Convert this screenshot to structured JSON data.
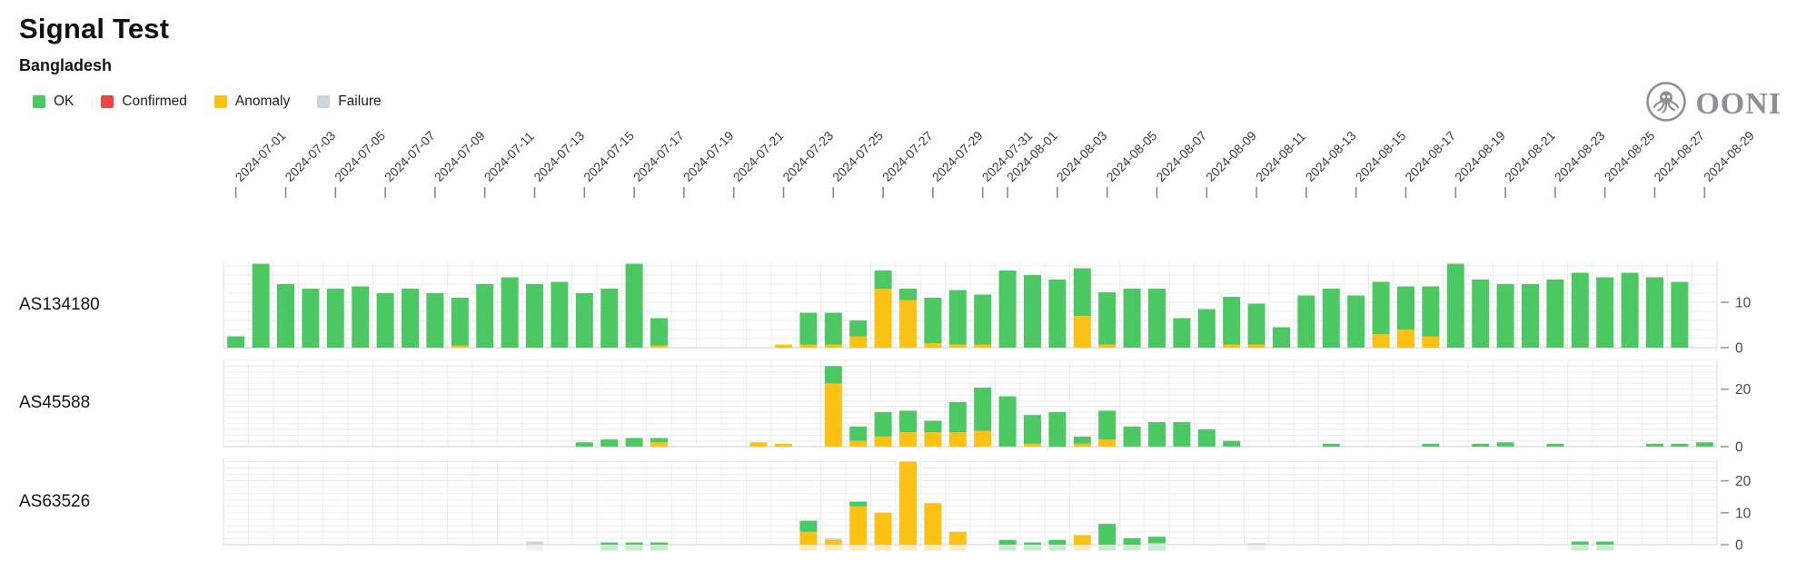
{
  "header": {
    "title": "Signal Test",
    "subtitle": "Bangladesh"
  },
  "logo": {
    "text": "OONI",
    "icon": "ooni-octopus-icon",
    "color": "#8e8e96"
  },
  "legend": [
    {
      "key": "ok",
      "label": "OK",
      "color": "#4bc862"
    },
    {
      "key": "confirmed",
      "label": "Confirmed",
      "color": "#ef4444"
    },
    {
      "key": "anomaly",
      "label": "Anomaly",
      "color": "#fbc113"
    },
    {
      "key": "failure",
      "label": "Failure",
      "color": "#ccd4dc"
    }
  ],
  "chart_data": {
    "type": "bar",
    "stacked": true,
    "stack_order": [
      "anomaly",
      "confirmed",
      "failure",
      "ok"
    ],
    "grid": true,
    "legend_position": "top-left",
    "x_start": "2024-07-01",
    "x_days": 60,
    "x_tick_labels": [
      "2024-07-01",
      "2024-07-03",
      "2024-07-05",
      "2024-07-07",
      "2024-07-09",
      "2024-07-11",
      "2024-07-13",
      "2024-07-15",
      "2024-07-17",
      "2024-07-19",
      "2024-07-21",
      "2024-07-23",
      "2024-07-25",
      "2024-07-27",
      "2024-07-29",
      "2024-07-31",
      "2024-08-01",
      "2024-08-03",
      "2024-08-05",
      "2024-08-07",
      "2024-08-09",
      "2024-08-11",
      "2024-08-13",
      "2024-08-15",
      "2024-08-17",
      "2024-08-19",
      "2024-08-21",
      "2024-08-23",
      "2024-08-25",
      "2024-08-27",
      "2024-08-29"
    ],
    "rows": [
      {
        "label": "AS134180",
        "ylim": [
          0,
          19
        ],
        "yticks": [
          0,
          10
        ],
        "bars": [
          {
            "date": "2024-07-01",
            "ok": 2.5
          },
          {
            "date": "2024-07-02",
            "ok": 18.5
          },
          {
            "date": "2024-07-03",
            "ok": 14
          },
          {
            "date": "2024-07-04",
            "ok": 13
          },
          {
            "date": "2024-07-05",
            "ok": 13
          },
          {
            "date": "2024-07-06",
            "ok": 13.5
          },
          {
            "date": "2024-07-07",
            "ok": 12
          },
          {
            "date": "2024-07-08",
            "ok": 13
          },
          {
            "date": "2024-07-09",
            "ok": 12
          },
          {
            "date": "2024-07-10",
            "ok": 10.5,
            "anomaly": 0.5
          },
          {
            "date": "2024-07-11",
            "ok": 14
          },
          {
            "date": "2024-07-12",
            "ok": 15.5
          },
          {
            "date": "2024-07-13",
            "ok": 14
          },
          {
            "date": "2024-07-14",
            "ok": 14.5
          },
          {
            "date": "2024-07-15",
            "ok": 12
          },
          {
            "date": "2024-07-16",
            "ok": 13
          },
          {
            "date": "2024-07-17",
            "ok": 18.5
          },
          {
            "date": "2024-07-18",
            "ok": 6,
            "anomaly": 0.5
          },
          {
            "date": "2024-07-23",
            "anomaly": 0.7
          },
          {
            "date": "2024-07-24",
            "ok": 7,
            "anomaly": 0.7
          },
          {
            "date": "2024-07-25",
            "ok": 7,
            "anomaly": 0.7
          },
          {
            "date": "2024-07-26",
            "ok": 3.5,
            "anomaly": 2.5
          },
          {
            "date": "2024-07-27",
            "ok": 4,
            "anomaly": 13
          },
          {
            "date": "2024-07-28",
            "ok": 2.5,
            "anomaly": 10.5
          },
          {
            "date": "2024-07-29",
            "ok": 10,
            "anomaly": 1
          },
          {
            "date": "2024-07-30",
            "ok": 12,
            "anomaly": 0.7
          },
          {
            "date": "2024-07-31",
            "ok": 11,
            "anomaly": 0.7
          },
          {
            "date": "2024-08-01",
            "ok": 17
          },
          {
            "date": "2024-08-02",
            "ok": 16
          },
          {
            "date": "2024-08-03",
            "ok": 15
          },
          {
            "date": "2024-08-04",
            "ok": 10.5,
            "anomaly": 7
          },
          {
            "date": "2024-08-05",
            "ok": 11.5,
            "anomaly": 0.7
          },
          {
            "date": "2024-08-06",
            "ok": 13
          },
          {
            "date": "2024-08-07",
            "ok": 13
          },
          {
            "date": "2024-08-08",
            "ok": 6.5
          },
          {
            "date": "2024-08-09",
            "ok": 8.5
          },
          {
            "date": "2024-08-10",
            "ok": 10.5,
            "anomaly": 0.7
          },
          {
            "date": "2024-08-11",
            "ok": 9,
            "anomaly": 0.7
          },
          {
            "date": "2024-08-12",
            "ok": 4.5
          },
          {
            "date": "2024-08-13",
            "ok": 11.5
          },
          {
            "date": "2024-08-14",
            "ok": 13
          },
          {
            "date": "2024-08-15",
            "ok": 11.5
          },
          {
            "date": "2024-08-16",
            "ok": 11.5,
            "anomaly": 3
          },
          {
            "date": "2024-08-17",
            "ok": 9.5,
            "anomaly": 4
          },
          {
            "date": "2024-08-18",
            "ok": 11,
            "anomaly": 2.5
          },
          {
            "date": "2024-08-19",
            "ok": 18.5
          },
          {
            "date": "2024-08-20",
            "ok": 15
          },
          {
            "date": "2024-08-21",
            "ok": 14
          },
          {
            "date": "2024-08-22",
            "ok": 14
          },
          {
            "date": "2024-08-23",
            "ok": 15
          },
          {
            "date": "2024-08-24",
            "ok": 16.5
          },
          {
            "date": "2024-08-25",
            "ok": 15.5
          },
          {
            "date": "2024-08-26",
            "ok": 16.5
          },
          {
            "date": "2024-08-27",
            "ok": 15.5
          },
          {
            "date": "2024-08-28",
            "ok": 14.5
          }
        ]
      },
      {
        "label": "AS45588",
        "ylim": [
          0,
          30
        ],
        "yticks": [
          0,
          20
        ],
        "bars": [
          {
            "date": "2024-07-15",
            "ok": 1.5
          },
          {
            "date": "2024-07-16",
            "ok": 2.5
          },
          {
            "date": "2024-07-17",
            "ok": 3
          },
          {
            "date": "2024-07-18",
            "ok": 1.5,
            "anomaly": 1.5
          },
          {
            "date": "2024-07-22",
            "anomaly": 1.5
          },
          {
            "date": "2024-07-23",
            "anomaly": 1
          },
          {
            "date": "2024-07-25",
            "ok": 6,
            "anomaly": 22
          },
          {
            "date": "2024-07-26",
            "ok": 5,
            "anomaly": 2
          },
          {
            "date": "2024-07-27",
            "ok": 8.5,
            "anomaly": 3.5
          },
          {
            "date": "2024-07-28",
            "ok": 7.5,
            "anomaly": 5
          },
          {
            "date": "2024-07-29",
            "ok": 4,
            "anomaly": 5
          },
          {
            "date": "2024-07-30",
            "ok": 10.5,
            "anomaly": 5
          },
          {
            "date": "2024-07-31",
            "ok": 15,
            "anomaly": 5.5
          },
          {
            "date": "2024-08-01",
            "ok": 17.5
          },
          {
            "date": "2024-08-02",
            "ok": 10,
            "anomaly": 1
          },
          {
            "date": "2024-08-03",
            "ok": 12
          },
          {
            "date": "2024-08-04",
            "ok": 2.5,
            "anomaly": 1
          },
          {
            "date": "2024-08-05",
            "ok": 10,
            "anomaly": 2.5
          },
          {
            "date": "2024-08-06",
            "ok": 7
          },
          {
            "date": "2024-08-07",
            "ok": 8.5
          },
          {
            "date": "2024-08-08",
            "ok": 8.5
          },
          {
            "date": "2024-08-09",
            "ok": 6
          },
          {
            "date": "2024-08-10",
            "ok": 2
          },
          {
            "date": "2024-08-14",
            "ok": 1
          },
          {
            "date": "2024-08-18",
            "ok": 1
          },
          {
            "date": "2024-08-20",
            "ok": 1
          },
          {
            "date": "2024-08-21",
            "ok": 1.5
          },
          {
            "date": "2024-08-23",
            "ok": 1
          },
          {
            "date": "2024-08-27",
            "ok": 1
          },
          {
            "date": "2024-08-28",
            "ok": 1
          },
          {
            "date": "2024-08-29",
            "ok": 1.5
          }
        ]
      },
      {
        "label": "AS63526",
        "ylim": [
          0,
          27
        ],
        "yticks": [
          0,
          10,
          20
        ],
        "bars": [
          {
            "date": "2024-07-13",
            "failure": 1
          },
          {
            "date": "2024-07-16",
            "ok": 0.7
          },
          {
            "date": "2024-07-17",
            "ok": 0.7
          },
          {
            "date": "2024-07-18",
            "ok": 0.7
          },
          {
            "date": "2024-07-24",
            "ok": 3.5,
            "anomaly": 4
          },
          {
            "date": "2024-07-25",
            "anomaly": 1.5,
            "failure": 0.5
          },
          {
            "date": "2024-07-26",
            "ok": 1.5,
            "anomaly": 12
          },
          {
            "date": "2024-07-27",
            "anomaly": 10
          },
          {
            "date": "2024-07-28",
            "anomaly": 26
          },
          {
            "date": "2024-07-29",
            "anomaly": 13
          },
          {
            "date": "2024-07-30",
            "anomaly": 4
          },
          {
            "date": "2024-08-01",
            "ok": 1.5
          },
          {
            "date": "2024-08-02",
            "ok": 0.7
          },
          {
            "date": "2024-08-03",
            "ok": 1.5
          },
          {
            "date": "2024-08-04",
            "anomaly": 3
          },
          {
            "date": "2024-08-05",
            "ok": 6.5
          },
          {
            "date": "2024-08-06",
            "ok": 2
          },
          {
            "date": "2024-08-07",
            "ok": 2,
            "failure": 0.5
          },
          {
            "date": "2024-08-11",
            "failure": 0.5
          },
          {
            "date": "2024-08-24",
            "ok": 1
          },
          {
            "date": "2024-08-25",
            "ok": 1
          }
        ]
      }
    ]
  },
  "axis_style": {
    "tick_color": "#8a8a8a",
    "label_color": "#3d3d3d",
    "ytick_label_color": "#4a4a4a",
    "grid_color": "#e9ebee",
    "grid_color_vertical": "#ededed",
    "baseline_color": "#cfcfcf"
  }
}
